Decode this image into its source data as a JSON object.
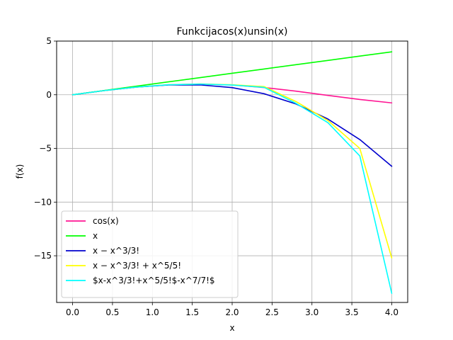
{
  "chart_data": {
    "type": "line",
    "title": "Funkcijacos(x)unsin(x)",
    "xlabel": "x",
    "ylabel": "f(x)",
    "xlim": [
      -0.2,
      4.2
    ],
    "ylim": [
      -19.35,
      5.0
    ],
    "xticks": [
      0.0,
      0.5,
      1.0,
      1.5,
      2.0,
      2.5,
      3.0,
      3.5,
      4.0
    ],
    "xtick_labels": [
      "0.0",
      "0.5",
      "1.0",
      "1.5",
      "2.0",
      "2.5",
      "3.0",
      "3.5",
      "4.0"
    ],
    "yticks": [
      5,
      0,
      -5,
      -10,
      -15
    ],
    "ytick_labels": [
      "5",
      "0",
      "−5",
      "−10",
      "−15"
    ],
    "grid": true,
    "legend_position": "lower-left",
    "x": [
      0.0,
      0.4,
      0.8,
      1.2,
      1.6,
      2.0,
      2.4,
      2.8,
      3.2,
      3.6,
      4.0
    ],
    "series": [
      {
        "name": "cos(x)",
        "color": "#ff1493",
        "values": [
          0.0,
          0.389,
          0.717,
          0.932,
          1.0,
          0.909,
          0.675,
          0.335,
          -0.058,
          -0.443,
          -0.757
        ]
      },
      {
        "name": "x",
        "color": "#00ff00",
        "values": [
          0.0,
          0.4,
          0.8,
          1.2,
          1.6,
          2.0,
          2.4,
          2.8,
          3.2,
          3.6,
          4.0
        ]
      },
      {
        "name": "x − x^3/3!",
        "color": "#0000cd",
        "values": [
          0.0,
          0.389,
          0.715,
          0.912,
          0.917,
          0.667,
          0.096,
          -0.859,
          -2.261,
          -4.176,
          -6.667
        ]
      },
      {
        "name": "x − x^3/3! + x^5/5!",
        "color": "#ffff00",
        "values": [
          0.0,
          0.389,
          0.718,
          0.933,
          1.004,
          0.933,
          0.759,
          -0.632,
          -2.4,
          -5.0,
          -15.2
        ]
      },
      {
        "name": "$x-x^3/3!+x^5/5!$-x^7/7!$",
        "color": "#00ffff",
        "values": [
          0.0,
          0.389,
          0.717,
          0.932,
          0.999,
          0.907,
          0.69,
          -0.8,
          -2.6,
          -5.7,
          -18.5
        ]
      }
    ]
  }
}
